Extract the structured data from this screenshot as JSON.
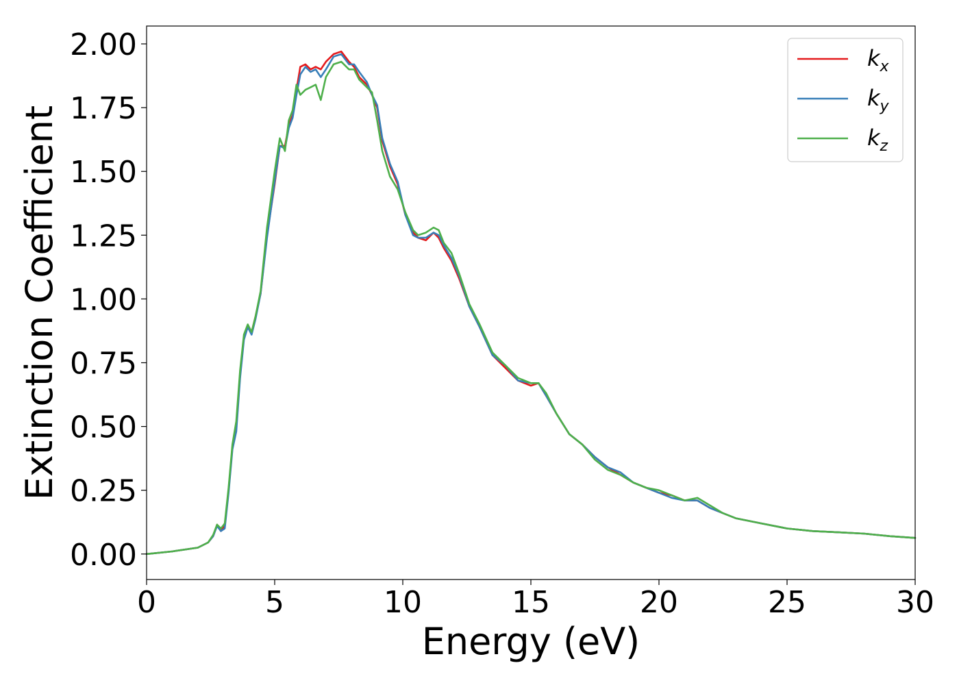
{
  "chart_data": {
    "type": "line",
    "xlabel": "Energy (eV)",
    "ylabel": "Extinction Coefficient",
    "xlim": [
      0,
      30
    ],
    "ylim": [
      -0.1,
      2.07
    ],
    "xticks": [
      0,
      5,
      10,
      15,
      20,
      25,
      30
    ],
    "xtick_labels": [
      "0",
      "5",
      "10",
      "15",
      "20",
      "25",
      "30"
    ],
    "yticks": [
      0,
      0.25,
      0.5,
      0.75,
      1.0,
      1.25,
      1.5,
      1.75,
      2.0
    ],
    "ytick_labels": [
      "0.00",
      "0.25",
      "0.50",
      "0.75",
      "1.00",
      "1.25",
      "1.50",
      "1.75",
      "2.00"
    ],
    "grid": false,
    "legend_position": "top-right",
    "series": [
      {
        "name": "k_x",
        "label_main": "k",
        "label_sub": "x",
        "color": "#e41a1c",
        "x": [
          0,
          1,
          2,
          2.4,
          2.6,
          2.75,
          2.9,
          3.05,
          3.2,
          3.35,
          3.5,
          3.65,
          3.8,
          3.95,
          4.1,
          4.25,
          4.45,
          4.7,
          5.0,
          5.2,
          5.4,
          5.55,
          5.7,
          5.85,
          6.0,
          6.2,
          6.4,
          6.6,
          6.8,
          7.0,
          7.3,
          7.6,
          7.9,
          8.1,
          8.3,
          8.6,
          8.8,
          9.0,
          9.2,
          9.5,
          9.8,
          10.1,
          10.4,
          10.6,
          10.9,
          11.2,
          11.4,
          11.6,
          11.9,
          12.2,
          12.6,
          13.0,
          13.5,
          14.0,
          14.5,
          15.0,
          15.3,
          15.6,
          16.0,
          16.5,
          17.0,
          17.5,
          18.0,
          18.5,
          19.0,
          19.5,
          20.0,
          20.5,
          21.0,
          21.5,
          22.0,
          22.5,
          23.0,
          24.0,
          25.0,
          26.0,
          27.0,
          28.0,
          29.0,
          30.0
        ],
        "y": [
          0.0,
          0.01,
          0.025,
          0.045,
          0.07,
          0.115,
          0.09,
          0.11,
          0.25,
          0.42,
          0.5,
          0.7,
          0.85,
          0.89,
          0.87,
          0.93,
          1.02,
          1.25,
          1.45,
          1.6,
          1.6,
          1.68,
          1.72,
          1.82,
          1.91,
          1.92,
          1.9,
          1.91,
          1.9,
          1.93,
          1.96,
          1.97,
          1.93,
          1.91,
          1.87,
          1.84,
          1.8,
          1.75,
          1.62,
          1.52,
          1.45,
          1.33,
          1.26,
          1.24,
          1.23,
          1.26,
          1.24,
          1.2,
          1.15,
          1.08,
          0.97,
          0.89,
          0.78,
          0.73,
          0.68,
          0.66,
          0.67,
          0.62,
          0.55,
          0.47,
          0.43,
          0.38,
          0.34,
          0.31,
          0.28,
          0.26,
          0.24,
          0.23,
          0.21,
          0.21,
          0.18,
          0.16,
          0.14,
          0.12,
          0.1,
          0.09,
          0.085,
          0.08,
          0.07,
          0.063
        ]
      },
      {
        "name": "k_y",
        "label_main": "k",
        "label_sub": "y",
        "color": "#377eb8",
        "x": [
          0,
          1,
          2,
          2.4,
          2.6,
          2.75,
          2.9,
          3.05,
          3.2,
          3.35,
          3.5,
          3.65,
          3.8,
          3.95,
          4.1,
          4.25,
          4.45,
          4.7,
          5.0,
          5.2,
          5.4,
          5.55,
          5.7,
          5.85,
          6.0,
          6.2,
          6.4,
          6.6,
          6.8,
          7.0,
          7.3,
          7.6,
          7.9,
          8.1,
          8.3,
          8.6,
          8.8,
          9.0,
          9.2,
          9.5,
          9.8,
          10.1,
          10.4,
          10.6,
          10.9,
          11.2,
          11.4,
          11.6,
          11.9,
          12.2,
          12.6,
          13.0,
          13.5,
          14.0,
          14.5,
          15.0,
          15.3,
          15.6,
          16.0,
          16.5,
          17.0,
          17.5,
          18.0,
          18.5,
          19.0,
          19.5,
          20.0,
          20.5,
          21.0,
          21.5,
          22.0,
          22.5,
          23.0,
          24.0,
          25.0,
          26.0,
          27.0,
          28.0,
          29.0,
          30.0
        ],
        "y": [
          0.0,
          0.01,
          0.025,
          0.045,
          0.07,
          0.11,
          0.09,
          0.1,
          0.24,
          0.41,
          0.48,
          0.69,
          0.84,
          0.89,
          0.86,
          0.92,
          1.02,
          1.24,
          1.46,
          1.6,
          1.59,
          1.67,
          1.71,
          1.8,
          1.88,
          1.91,
          1.89,
          1.9,
          1.87,
          1.9,
          1.95,
          1.96,
          1.92,
          1.92,
          1.89,
          1.85,
          1.8,
          1.76,
          1.63,
          1.53,
          1.46,
          1.33,
          1.25,
          1.24,
          1.24,
          1.26,
          1.25,
          1.21,
          1.16,
          1.09,
          0.97,
          0.89,
          0.78,
          0.74,
          0.68,
          0.67,
          0.67,
          0.62,
          0.55,
          0.47,
          0.43,
          0.38,
          0.34,
          0.32,
          0.28,
          0.26,
          0.24,
          0.22,
          0.21,
          0.21,
          0.18,
          0.16,
          0.14,
          0.12,
          0.1,
          0.09,
          0.085,
          0.08,
          0.07,
          0.063
        ]
      },
      {
        "name": "k_z",
        "label_main": "k",
        "label_sub": "z",
        "color": "#4daf4a",
        "x": [
          0,
          1,
          2,
          2.4,
          2.6,
          2.75,
          2.9,
          3.05,
          3.2,
          3.35,
          3.5,
          3.65,
          3.8,
          3.95,
          4.1,
          4.25,
          4.45,
          4.7,
          5.0,
          5.2,
          5.4,
          5.55,
          5.7,
          5.85,
          6.0,
          6.2,
          6.4,
          6.6,
          6.8,
          7.0,
          7.3,
          7.6,
          7.9,
          8.1,
          8.3,
          8.6,
          8.8,
          9.0,
          9.2,
          9.5,
          9.8,
          10.1,
          10.4,
          10.6,
          10.9,
          11.2,
          11.4,
          11.6,
          11.9,
          12.2,
          12.6,
          13.0,
          13.5,
          14.0,
          14.5,
          15.0,
          15.3,
          15.6,
          16.0,
          16.5,
          17.0,
          17.5,
          18.0,
          18.5,
          19.0,
          19.5,
          20.0,
          20.5,
          21.0,
          21.5,
          22.0,
          22.5,
          23.0,
          24.0,
          25.0,
          26.0,
          27.0,
          28.0,
          29.0,
          30.0
        ],
        "y": [
          0.0,
          0.01,
          0.025,
          0.045,
          0.075,
          0.115,
          0.1,
          0.12,
          0.26,
          0.43,
          0.52,
          0.72,
          0.86,
          0.9,
          0.87,
          0.93,
          1.03,
          1.28,
          1.5,
          1.63,
          1.58,
          1.7,
          1.74,
          1.84,
          1.8,
          1.82,
          1.83,
          1.84,
          1.78,
          1.87,
          1.92,
          1.93,
          1.9,
          1.9,
          1.86,
          1.83,
          1.81,
          1.7,
          1.58,
          1.48,
          1.43,
          1.34,
          1.27,
          1.25,
          1.26,
          1.28,
          1.27,
          1.22,
          1.18,
          1.1,
          0.98,
          0.9,
          0.79,
          0.74,
          0.69,
          0.67,
          0.67,
          0.63,
          0.55,
          0.47,
          0.43,
          0.37,
          0.33,
          0.31,
          0.28,
          0.26,
          0.25,
          0.23,
          0.21,
          0.22,
          0.19,
          0.16,
          0.14,
          0.12,
          0.1,
          0.09,
          0.085,
          0.08,
          0.07,
          0.063
        ]
      }
    ]
  }
}
